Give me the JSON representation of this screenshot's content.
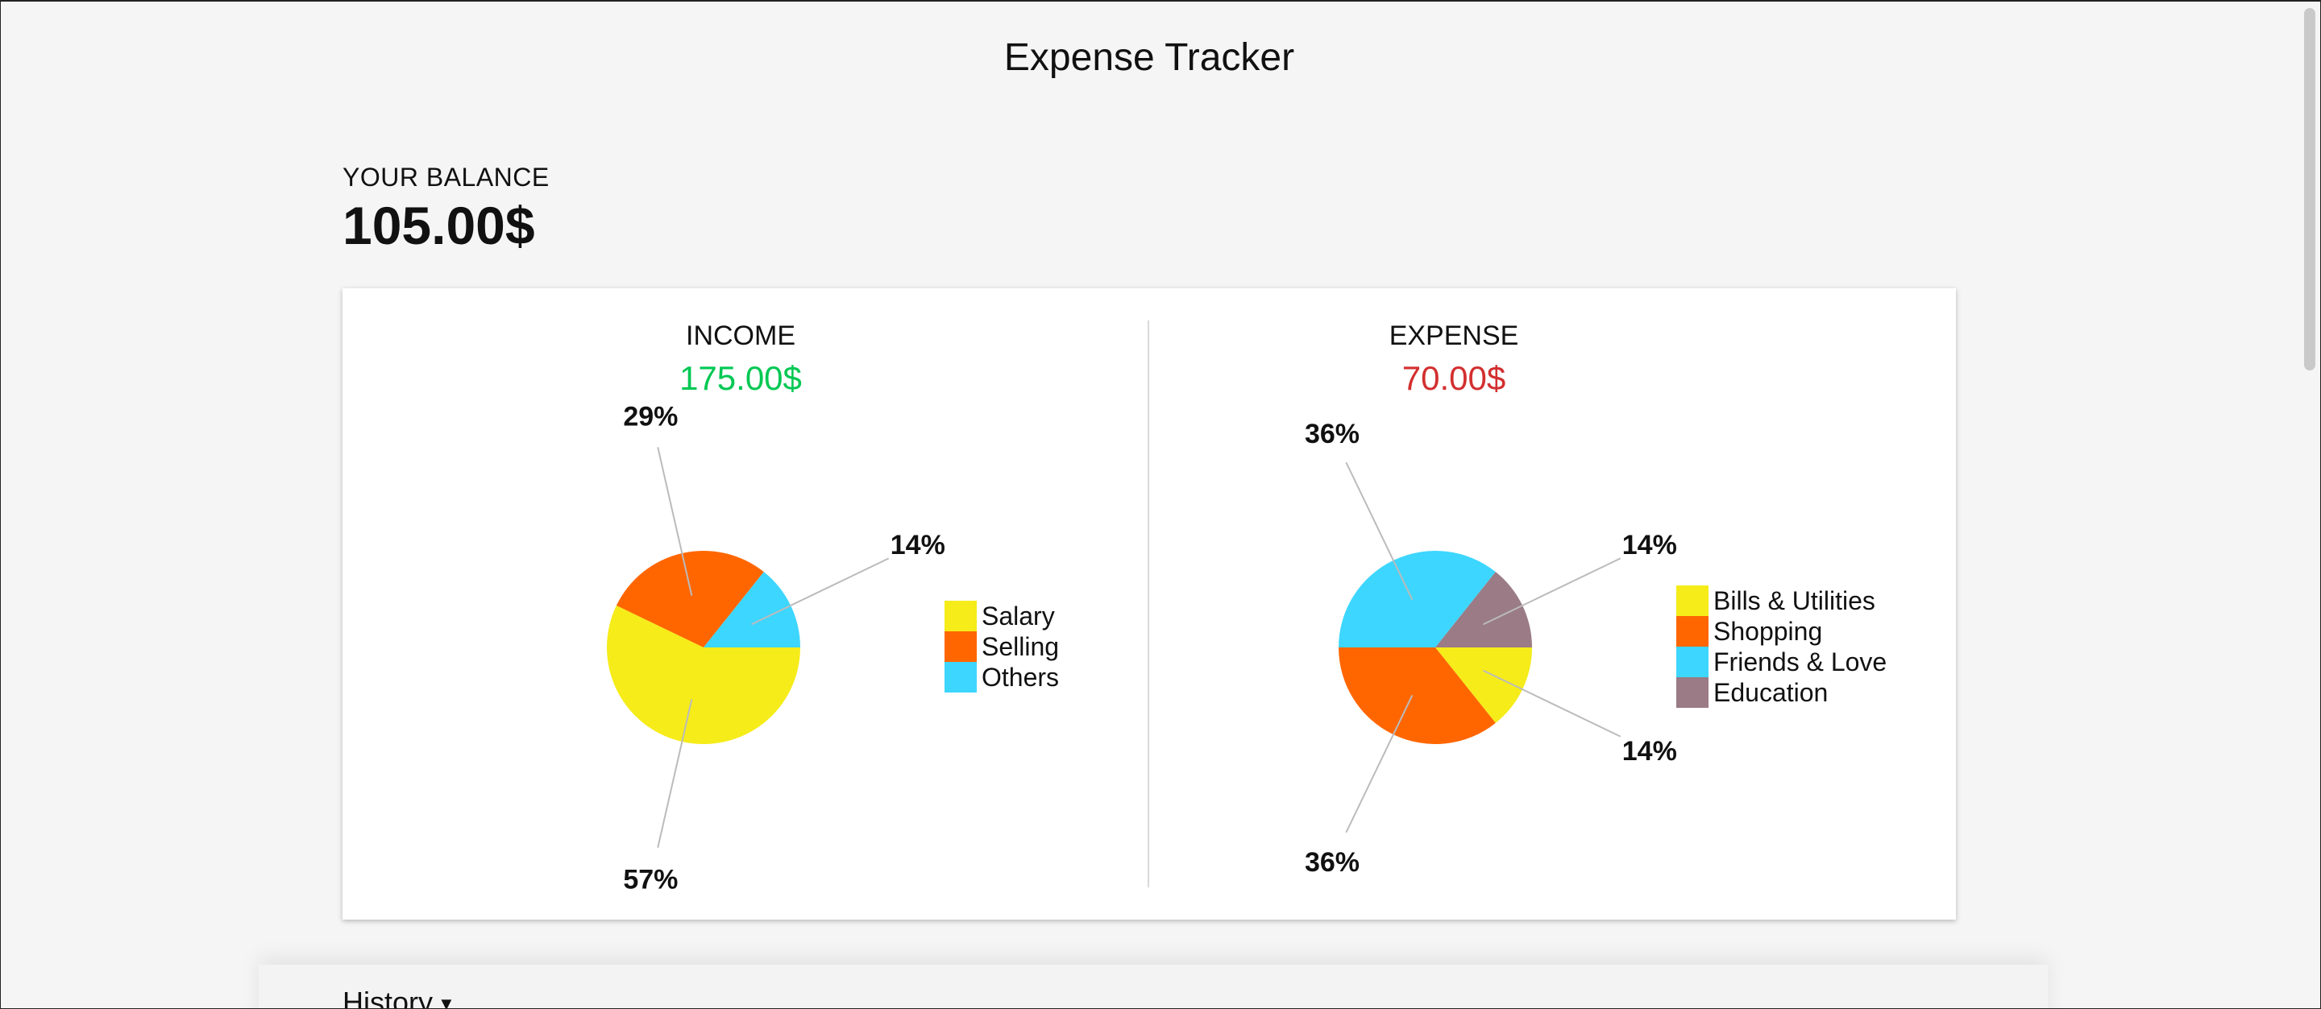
{
  "header": {
    "title": "Expense Tracker"
  },
  "balance": {
    "label": "YOUR BALANCE",
    "value": "105.00$"
  },
  "income": {
    "heading": "INCOME",
    "amount": "175.00$",
    "amount_color": "#00c853",
    "chart_data": {
      "type": "pie",
      "categories": [
        "Salary",
        "Selling",
        "Others"
      ],
      "values": [
        100,
        50,
        25
      ],
      "percent_labels": [
        "57%",
        "29%",
        "14%"
      ],
      "colors": [
        "#f5ec1a",
        "#ff6600",
        "#3dd6ff"
      ],
      "legend_position": "right"
    }
  },
  "expense": {
    "heading": "EXPENSE",
    "amount": "70.00$",
    "amount_color": "#d32f2f",
    "chart_data": {
      "type": "pie",
      "categories": [
        "Bills & Utilities",
        "Shopping",
        "Friends & Love",
        "Education"
      ],
      "values": [
        10,
        25,
        25,
        10
      ],
      "percent_labels": [
        "14%",
        "36%",
        "36%",
        "14%"
      ],
      "colors": [
        "#f5ec1a",
        "#ff6600",
        "#3dd6ff",
        "#9a7b86"
      ],
      "legend_position": "right"
    }
  },
  "history": {
    "label": "History",
    "caret_icon": "caret-down-icon"
  }
}
